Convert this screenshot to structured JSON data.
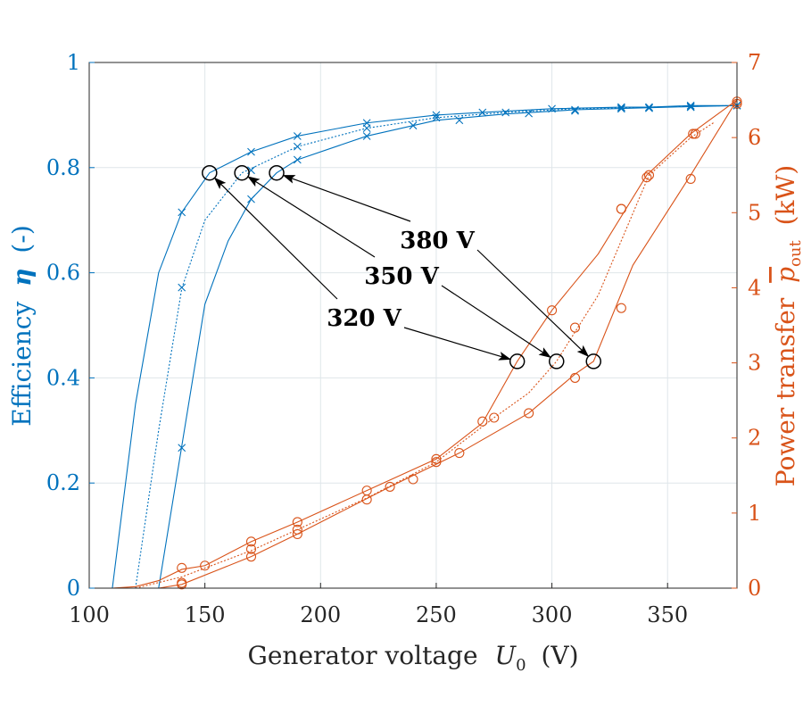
{
  "chart_data": {
    "type": "line",
    "title": "",
    "xlabel": "Generator voltage",
    "xlabel_symbol": "U",
    "xlabel_subscript": "0",
    "xlabel_unit": "(V)",
    "ylabel_left": "Efficiency",
    "ylabel_left_symbol": "η",
    "ylabel_left_unit": "(-)",
    "ylabel_right": "Power transfer",
    "ylabel_right_symbol": "p",
    "ylabel_right_subscript": "out",
    "ylabel_right_unit": "(kW)",
    "xlim": [
      100,
      380
    ],
    "ylim_left": [
      0,
      1
    ],
    "ylim_right": [
      0,
      7
    ],
    "xticks": [
      100,
      150,
      200,
      250,
      300,
      350
    ],
    "yticks_left": [
      "0",
      "0.2",
      "0.4",
      "0.6",
      "0.8",
      "1"
    ],
    "yticks_right": [
      "0",
      "1",
      "2",
      "3",
      "4",
      "5",
      "6",
      "7"
    ],
    "colors": {
      "efficiency": "#0072bd",
      "power": "#d95319",
      "grid": "#dfe6ea",
      "annotation": "#000000"
    },
    "grid": true,
    "efficiency_series": [
      {
        "name": "320 V",
        "line": "solid",
        "x": [
          110,
          120,
          130,
          140,
          152,
          170,
          190,
          220,
          250,
          270,
          300,
          330,
          342,
          360,
          380
        ],
        "y": [
          0,
          0.35,
          0.6,
          0.715,
          0.79,
          0.83,
          0.86,
          0.885,
          0.9,
          0.905,
          0.912,
          0.915,
          0.915,
          0.918,
          0.918
        ],
        "markers": [
          [
            140,
            0.715
          ],
          [
            170,
            0.83
          ],
          [
            190,
            0.86
          ],
          [
            220,
            0.885
          ],
          [
            250,
            0.9
          ],
          [
            270,
            0.905
          ],
          [
            300,
            0.912
          ],
          [
            330,
            0.915
          ],
          [
            342,
            0.915
          ],
          [
            360,
            0.918
          ],
          [
            380,
            0.918
          ]
        ]
      },
      {
        "name": "350 V",
        "line": "dotted",
        "x": [
          120,
          130,
          140,
          150,
          166,
          190,
          220,
          250,
          280,
          310,
          342,
          360,
          380
        ],
        "y": [
          0,
          0.3,
          0.57,
          0.7,
          0.79,
          0.84,
          0.875,
          0.895,
          0.905,
          0.912,
          0.915,
          0.917,
          0.918
        ],
        "markers": [
          [
            140,
            0.572
          ],
          [
            170,
            0.795
          ],
          [
            190,
            0.84
          ],
          [
            220,
            0.875
          ],
          [
            250,
            0.895
          ],
          [
            280,
            0.905
          ],
          [
            310,
            0.91
          ],
          [
            330,
            0.913
          ],
          [
            342,
            0.914
          ],
          [
            360,
            0.916
          ],
          [
            380,
            0.918
          ]
        ]
      },
      {
        "name": "380 V",
        "line": "solid",
        "x": [
          130,
          140,
          150,
          160,
          170,
          181,
          190,
          220,
          250,
          280,
          310,
          342,
          360,
          380
        ],
        "y": [
          0,
          0.27,
          0.54,
          0.66,
          0.74,
          0.79,
          0.815,
          0.86,
          0.89,
          0.902,
          0.91,
          0.914,
          0.916,
          0.918
        ],
        "markers": [
          [
            140,
            0.267
          ],
          [
            170,
            0.74
          ],
          [
            190,
            0.815
          ],
          [
            220,
            0.86
          ],
          [
            240,
            0.88
          ],
          [
            260,
            0.89
          ],
          [
            290,
            0.903
          ],
          [
            310,
            0.908
          ],
          [
            330,
            0.912
          ],
          [
            342,
            0.913
          ],
          [
            360,
            0.915
          ],
          [
            380,
            0.918
          ]
        ]
      }
    ],
    "power_series": [
      {
        "name": "320 V",
        "line": "solid",
        "x": [
          110,
          120,
          130,
          140,
          150,
          170,
          190,
          220,
          250,
          270,
          285,
          300,
          320,
          341,
          360,
          380
        ],
        "y": [
          0,
          0.02,
          0.1,
          0.25,
          0.3,
          0.62,
          0.88,
          1.3,
          1.72,
          2.2,
          3.02,
          3.7,
          4.45,
          5.5,
          6.05,
          6.5
        ],
        "markers": [
          [
            140,
            0.27
          ],
          [
            150,
            0.3
          ],
          [
            170,
            0.62
          ],
          [
            190,
            0.88
          ],
          [
            220,
            1.3
          ],
          [
            250,
            1.72
          ],
          [
            270,
            2.22
          ],
          [
            300,
            3.7
          ],
          [
            330,
            5.05
          ],
          [
            341,
            5.47
          ],
          [
            361,
            6.05
          ],
          [
            380,
            6.48
          ]
        ]
      },
      {
        "name": "350 V",
        "line": "dotted",
        "x": [
          120,
          140,
          170,
          190,
          220,
          250,
          275,
          290,
          302,
          320,
          342,
          360,
          370
        ],
        "y": [
          0,
          0.15,
          0.5,
          0.78,
          1.2,
          1.68,
          2.27,
          2.6,
          3.02,
          3.9,
          5.5,
          6.0,
          6.2
        ],
        "markers": [
          [
            140,
            0.07
          ],
          [
            170,
            0.52
          ],
          [
            190,
            0.78
          ],
          [
            220,
            1.18
          ],
          [
            250,
            1.68
          ],
          [
            275,
            2.27
          ],
          [
            310,
            3.47
          ],
          [
            330,
            5.05
          ],
          [
            342,
            5.5
          ],
          [
            362,
            6.05
          ]
        ]
      },
      {
        "name": "380 V",
        "line": "solid",
        "x": [
          130,
          140,
          170,
          190,
          230,
          260,
          290,
          310,
          318,
          335,
          360,
          380
        ],
        "y": [
          0,
          0.05,
          0.42,
          0.72,
          1.35,
          1.8,
          2.33,
          2.85,
          3.02,
          4.3,
          5.5,
          6.5
        ],
        "markers": [
          [
            140,
            0.05
          ],
          [
            170,
            0.42
          ],
          [
            190,
            0.72
          ],
          [
            230,
            1.35
          ],
          [
            240,
            1.45
          ],
          [
            260,
            1.8
          ],
          [
            290,
            2.33
          ],
          [
            310,
            2.8
          ],
          [
            330,
            3.73
          ],
          [
            360,
            5.45
          ],
          [
            380,
            6.45
          ]
        ]
      }
    ],
    "operating_points": [
      {
        "label": "320 V",
        "eff_x": 152,
        "eff_y": 0.79,
        "pow_x": 285,
        "pow_y": 3.02
      },
      {
        "label": "350 V",
        "eff_x": 166,
        "eff_y": 0.79,
        "pow_x": 302,
        "pow_y": 3.02
      },
      {
        "label": "380 V",
        "eff_x": 181,
        "eff_y": 0.79,
        "pow_x": 318,
        "pow_y": 3.02
      }
    ]
  }
}
